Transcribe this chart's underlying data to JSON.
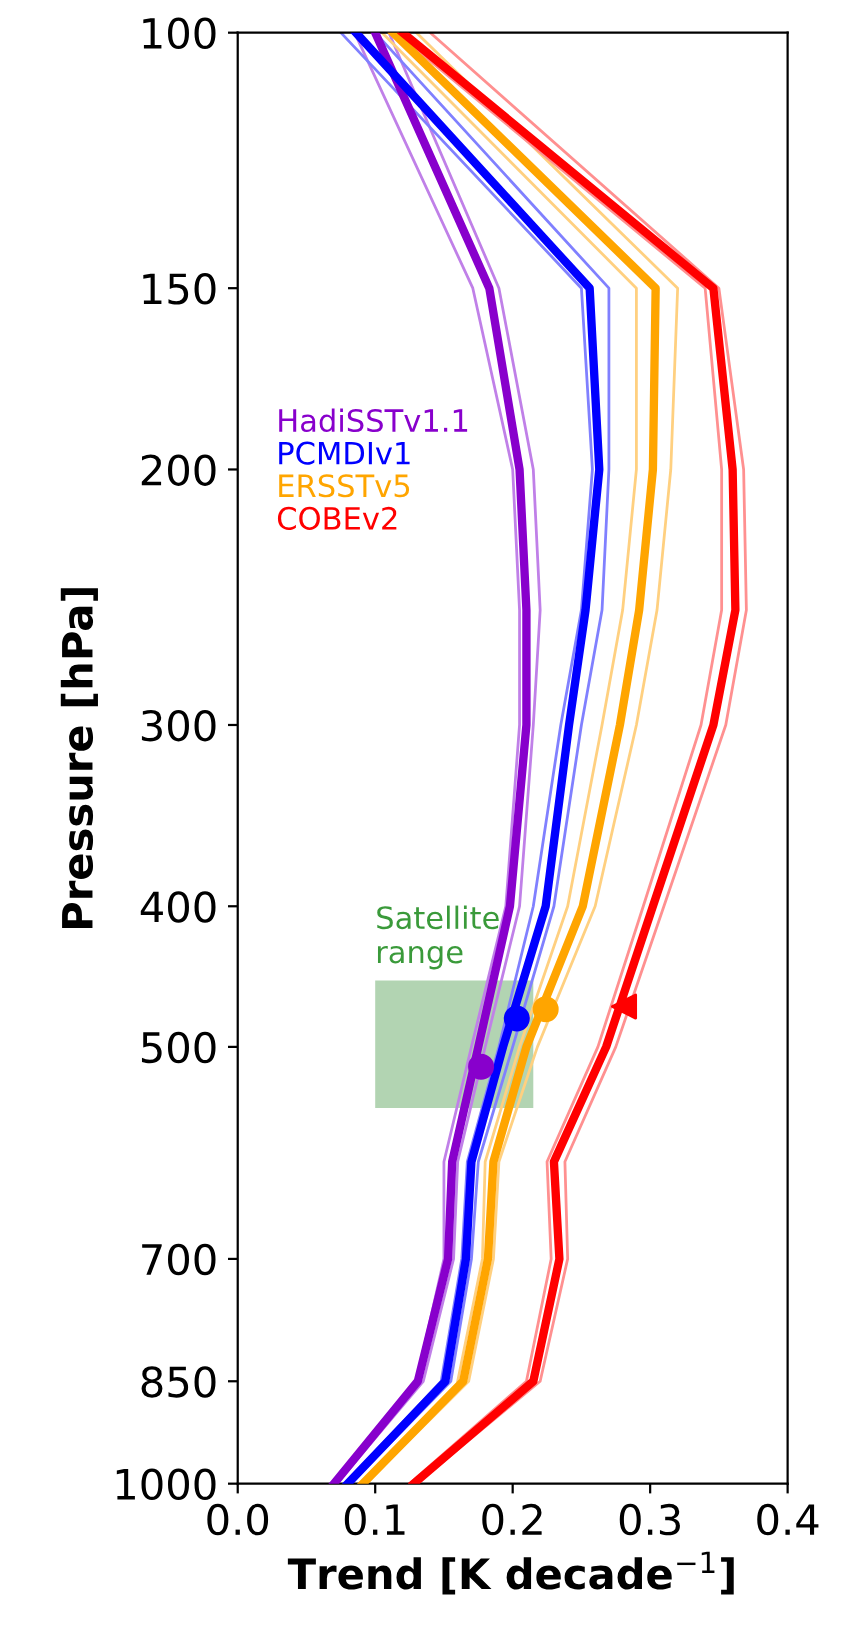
{
  "chart_data": {
    "type": "line",
    "xlabel": "Trend [K decade$^{−1}$]",
    "ylabel": "Pressure [hPa]",
    "xlim": [
      0.0,
      0.4
    ],
    "xticks": [
      {
        "value": 0.0,
        "label": "0.0"
      },
      0.1,
      0.2,
      0.3,
      0.4
    ],
    "ylim": [
      1000,
      100
    ],
    "yticks": [
      100,
      150,
      200,
      300,
      400,
      500,
      700,
      850,
      1000
    ],
    "log": "y",
    "grid": false,
    "legend": "upper left",
    "annotations": [
      {
        "text": "Satellite\nrange",
        "x": 0.1,
        "y": 450
      }
    ],
    "series": [
      {
        "color": "#c080e8",
        "x": [
          0.085,
          0.171,
          0.2,
          0.205,
          0.205,
          0.195,
          0.17,
          0.15,
          0.15,
          0.13,
          0.068
        ],
        "values": [
          100,
          150,
          200,
          250,
          300,
          400,
          500,
          600,
          700,
          850,
          1000
        ]
      },
      {
        "color": "#c080e8",
        "x": [
          0.11,
          0.19,
          0.215,
          0.22,
          0.215,
          0.205,
          0.18,
          0.16,
          0.157,
          0.135,
          0.072
        ],
        "values": [
          100,
          150,
          200,
          250,
          300,
          400,
          500,
          600,
          700,
          850,
          1000
        ]
      },
      {
        "color": "#8080ff",
        "x": [
          0.075,
          0.25,
          0.258,
          0.25,
          0.235,
          0.215,
          0.19,
          0.167,
          0.163,
          0.148,
          0.078
        ],
        "values": [
          100,
          150,
          200,
          250,
          300,
          400,
          500,
          600,
          700,
          850,
          1000
        ]
      },
      {
        "color": "#8080ff",
        "x": [
          0.1,
          0.27,
          0.27,
          0.265,
          0.25,
          0.23,
          0.2,
          0.175,
          0.17,
          0.155,
          0.082
        ],
        "values": [
          100,
          150,
          200,
          250,
          300,
          400,
          500,
          600,
          700,
          850,
          1000
        ]
      },
      {
        "color": "#ffd080",
        "x": [
          0.105,
          0.29,
          0.29,
          0.28,
          0.265,
          0.24,
          0.205,
          0.18,
          0.178,
          0.16,
          null
        ],
        "values": [
          100,
          150,
          200,
          250,
          300,
          400,
          500,
          600,
          700,
          850,
          null
        ]
      },
      {
        "color": "#ffd080",
        "x": [
          0.13,
          0.32,
          0.315,
          0.305,
          0.29,
          0.26,
          0.218,
          0.19,
          0.186,
          0.168,
          0.093
        ],
        "values": [
          100,
          150,
          200,
          250,
          300,
          400,
          500,
          600,
          700,
          850,
          1000
        ]
      },
      {
        "color": "#ff9090",
        "x": [
          0.115,
          0.34,
          0.352,
          0.352,
          0.337,
          0.295,
          0.262,
          0.225,
          0.228,
          0.21,
          0.125
        ],
        "values": [
          100,
          150,
          200,
          250,
          300,
          400,
          500,
          600,
          700,
          850,
          1000
        ]
      },
      {
        "color": "#ff9090",
        "x": [
          0.14,
          0.35,
          0.368,
          0.37,
          0.355,
          0.31,
          0.275,
          0.238,
          0.24,
          0.22,
          0.13
        ],
        "values": [
          100,
          150,
          200,
          250,
          300,
          400,
          500,
          600,
          700,
          850,
          1000
        ]
      },
      {
        "name": "HadiSSTv1.1",
        "color": "#8800cc",
        "x": [
          0.1,
          0.183,
          0.205,
          0.21,
          0.21,
          0.198,
          0.175,
          0.156,
          0.153,
          0.131,
          0.07
        ],
        "values": [
          100,
          150,
          200,
          250,
          300,
          400,
          500,
          600,
          700,
          850,
          1000
        ]
      },
      {
        "name": "PCMDIv1",
        "color": "#0000ff",
        "x": [
          0.086,
          0.256,
          0.263,
          0.253,
          0.241,
          0.224,
          0.193,
          0.17,
          0.166,
          0.151,
          0.08
        ],
        "values": [
          100,
          150,
          200,
          250,
          300,
          400,
          500,
          600,
          700,
          850,
          1000
        ]
      },
      {
        "name": "ERSSTv5",
        "color": "#ffa500",
        "x": [
          0.113,
          0.304,
          0.302,
          0.292,
          0.278,
          0.251,
          0.21,
          0.186,
          0.182,
          0.164,
          0.091
        ],
        "values": [
          100,
          150,
          200,
          250,
          300,
          400,
          500,
          600,
          700,
          850,
          1000
        ]
      },
      {
        "name": "COBEv2",
        "color": "#ff0000",
        "x": [
          0.12,
          0.346,
          0.36,
          0.362,
          0.346,
          0.302,
          0.268,
          0.23,
          0.234,
          0.215,
          0.128
        ],
        "values": [
          100,
          150,
          200,
          250,
          300,
          400,
          500,
          600,
          700,
          850,
          1000
        ]
      },
      {
        "type": "area",
        "color": "#9fc99f",
        "x": [
          0.1,
          0.1,
          0.215,
          0.215
        ],
        "values": [
          551,
          450,
          450,
          551
        ]
      },
      {
        "type": "scatter",
        "marker": "circle",
        "color": "#8800cc",
        "x": [
          0.177
        ],
        "values": [
          516
        ]
      },
      {
        "type": "scatter",
        "marker": "circle",
        "color": "#0000ff",
        "x": [
          0.203
        ],
        "values": [
          478
        ]
      },
      {
        "type": "scatter",
        "marker": "circle",
        "color": "#ffa500",
        "x": [
          0.224
        ],
        "values": [
          471
        ]
      },
      {
        "type": "scatter",
        "marker": "triangle",
        "color": "#ff0000",
        "x": [
          0.281
        ],
        "values": [
          469
        ]
      }
    ]
  }
}
